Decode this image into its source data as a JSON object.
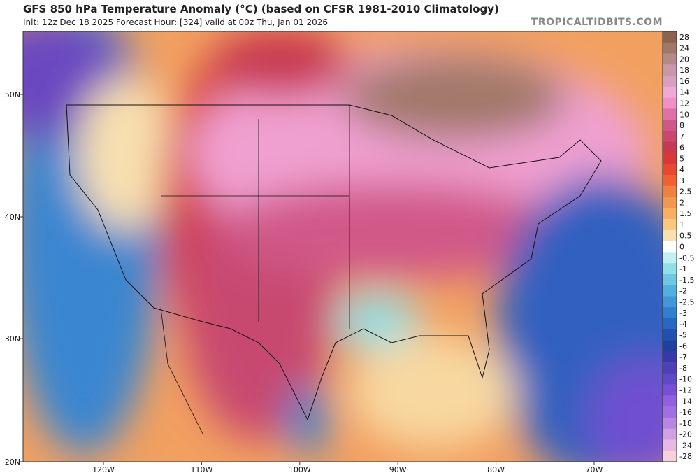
{
  "header": {
    "title": "GFS 850 hPa Temperature Anomaly (°C) (based on CFSR 1981-2010 Climatology)",
    "subtitle": "Init: 12z Dec 18 2025   Forecast Hour: [324]   valid at 00z Thu, Jan 01 2026",
    "site": "TROPICALTIDBITS.COM"
  },
  "latitude_labels": [
    "50N",
    "40N",
    "30N",
    "20N"
  ],
  "longitude_labels": [
    "120W",
    "110W",
    "100W",
    "90W",
    "80W",
    "70W"
  ],
  "colorbar": [
    {
      "label": "28",
      "color": "#8a6450"
    },
    {
      "label": "24",
      "color": "#a07868"
    },
    {
      "label": "20",
      "color": "#b48a88"
    },
    {
      "label": "18",
      "color": "#c898a8"
    },
    {
      "label": "16",
      "color": "#d8a0c0"
    },
    {
      "label": "14",
      "color": "#f0a8d8"
    },
    {
      "label": "12",
      "color": "#f090c8"
    },
    {
      "label": "10",
      "color": "#e070a8"
    },
    {
      "label": "8",
      "color": "#d05888"
    },
    {
      "label": "7",
      "color": "#c84870"
    },
    {
      "label": "6",
      "color": "#c83850"
    },
    {
      "label": "5",
      "color": "#d83838"
    },
    {
      "label": "4",
      "color": "#e84830"
    },
    {
      "label": "3",
      "color": "#f06030"
    },
    {
      "label": "2.5",
      "color": "#f08040"
    },
    {
      "label": "2",
      "color": "#f09850"
    },
    {
      "label": "1.5",
      "color": "#f8b060"
    },
    {
      "label": "1",
      "color": "#f8c880"
    },
    {
      "label": "0.5",
      "color": "#f8e0b0"
    },
    {
      "label": "0",
      "color": "#ffffff"
    },
    {
      "label": "-0.5",
      "color": "#c0f0f0"
    },
    {
      "label": "-1",
      "color": "#90e0e8"
    },
    {
      "label": "-1.5",
      "color": "#70c8e0"
    },
    {
      "label": "-2",
      "color": "#50b0e0"
    },
    {
      "label": "-2.5",
      "color": "#4098d8"
    },
    {
      "label": "-3",
      "color": "#3080d0"
    },
    {
      "label": "-4",
      "color": "#2868c0"
    },
    {
      "label": "-5",
      "color": "#2050b0"
    },
    {
      "label": "-6",
      "color": "#2040a0"
    },
    {
      "label": "-7",
      "color": "#3838a8"
    },
    {
      "label": "-8",
      "color": "#5040b8"
    },
    {
      "label": "-10",
      "color": "#6048c8"
    },
    {
      "label": "-12",
      "color": "#7850d8"
    },
    {
      "label": "-14",
      "color": "#9060e0"
    },
    {
      "label": "-16",
      "color": "#a070e0"
    },
    {
      "label": "-18",
      "color": "#b888e0"
    },
    {
      "label": "-20",
      "color": "#d0a0e0"
    },
    {
      "label": "-24",
      "color": "#e8b8e0"
    },
    {
      "label": "-28",
      "color": "#f8d0d8"
    }
  ]
}
